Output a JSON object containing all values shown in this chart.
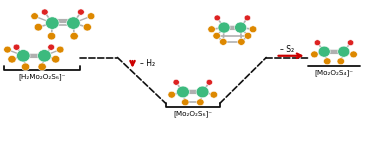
{
  "bg_color": "#ffffff",
  "label_left": "[H₂Mo₂O₂S₆]⁻",
  "label_middle": "[Mo₂O₂S₆]⁻",
  "label_right": "[Mo₂O₂S₄]⁻",
  "label_h2": "– H₂",
  "label_s2": "– S₂",
  "arrow_color": "#cc0000",
  "bracket_color": "#111111",
  "dashed_color": "#111111",
  "mo_color": "#3dba7e",
  "o_color": "#dd2222",
  "s_color": "#dd8800",
  "bond_color": "#b0b0b0",
  "figsize": [
    3.78,
    1.46
  ],
  "dpi": 100
}
